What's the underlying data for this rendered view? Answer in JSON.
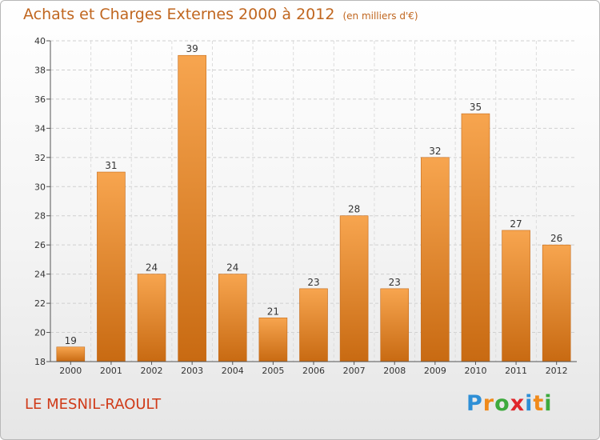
{
  "chart_data": {
    "type": "bar",
    "title": "Achats et Charges Externes 2000 à 2012",
    "subtitle": "(en milliers d'€)",
    "categories": [
      "2000",
      "2001",
      "2002",
      "2003",
      "2004",
      "2005",
      "2006",
      "2007",
      "2008",
      "2009",
      "2010",
      "2011",
      "2012"
    ],
    "values": [
      19,
      31,
      24,
      39,
      24,
      21,
      23,
      28,
      23,
      32,
      35,
      27,
      26
    ],
    "ylim": [
      18,
      40
    ],
    "yticks": [
      18,
      20,
      22,
      24,
      26,
      28,
      30,
      32,
      34,
      36,
      38,
      40
    ],
    "grid": true,
    "bar_color_light": "#f7a54f",
    "bar_color_dark": "#c86a12"
  },
  "footer": {
    "location": "LE MESNIL-RAOULT"
  },
  "logo": {
    "letters": [
      "P",
      "r",
      "o",
      "x",
      "i",
      "t",
      "i"
    ],
    "colors": [
      "#2e8fd6",
      "#f08a1a",
      "#3daa3d",
      "#e0262b",
      "#2e8fd6",
      "#f08a1a",
      "#3daa3d"
    ]
  }
}
